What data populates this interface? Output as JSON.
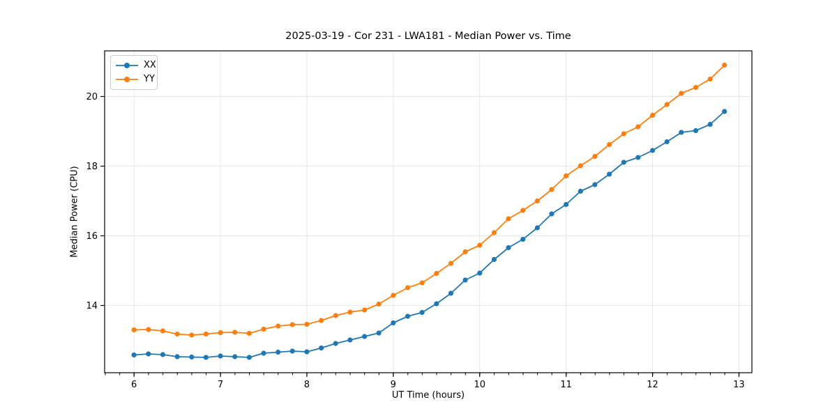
{
  "title": "2025-03-19 - Cor 231 - LWA181 - Median Power vs. Time",
  "chart_data": {
    "type": "line",
    "title": "2025-03-19 - Cor 231 - LWA181 - Median Power vs. Time",
    "xlabel": "UT Time (hours)",
    "ylabel": "Median Power (CPU)",
    "xlim": [
      5.66,
      13.15
    ],
    "ylim": [
      12.07,
      21.31
    ],
    "xticks": [
      6,
      7,
      8,
      9,
      10,
      11,
      12,
      13
    ],
    "yticks": [
      14,
      16,
      18,
      20
    ],
    "minor_xtick_step": 0.1667,
    "grid": true,
    "grid_color": "#e6e6e6",
    "legend_position": "upper left",
    "marker": "circle",
    "x": [
      6.0,
      6.167,
      6.333,
      6.5,
      6.667,
      6.833,
      7.0,
      7.167,
      7.333,
      7.5,
      7.667,
      7.833,
      8.0,
      8.167,
      8.333,
      8.5,
      8.667,
      8.833,
      9.0,
      9.167,
      9.333,
      9.5,
      9.667,
      9.833,
      10.0,
      10.167,
      10.333,
      10.5,
      10.667,
      10.833,
      11.0,
      11.167,
      11.333,
      11.5,
      11.667,
      11.833,
      12.0,
      12.167,
      12.333,
      12.5,
      12.667,
      12.833
    ],
    "series": [
      {
        "name": "XX",
        "color": "#1f77b4",
        "values": [
          12.58,
          12.61,
          12.59,
          12.53,
          12.52,
          12.51,
          12.55,
          12.53,
          12.51,
          12.63,
          12.66,
          12.69,
          12.67,
          12.78,
          12.91,
          13.01,
          13.11,
          13.21,
          13.5,
          13.69,
          13.8,
          14.05,
          14.35,
          14.73,
          14.93,
          15.32,
          15.66,
          15.9,
          16.23,
          16.63,
          16.9,
          17.28,
          17.47,
          17.77,
          18.11,
          18.25,
          18.45,
          18.7,
          18.97,
          19.02,
          19.2,
          19.57
        ]
      },
      {
        "name": "YY",
        "color": "#ff7f0e",
        "values": [
          13.3,
          13.31,
          13.27,
          13.18,
          13.15,
          13.18,
          13.22,
          13.23,
          13.2,
          13.32,
          13.41,
          13.45,
          13.46,
          13.57,
          13.71,
          13.81,
          13.87,
          14.04,
          14.29,
          14.51,
          14.65,
          14.92,
          15.21,
          15.54,
          15.73,
          16.09,
          16.49,
          16.73,
          17.0,
          17.33,
          17.72,
          18.01,
          18.28,
          18.62,
          18.93,
          19.13,
          19.46,
          19.77,
          20.09,
          20.26,
          20.5,
          20.9
        ]
      }
    ]
  }
}
